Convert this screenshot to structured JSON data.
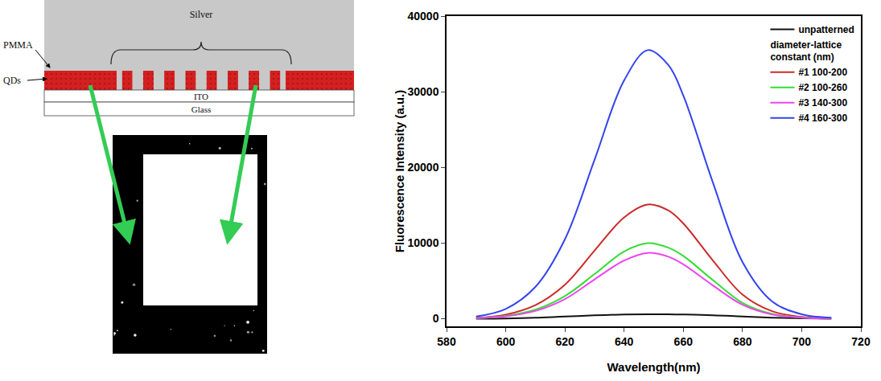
{
  "chart_data": {
    "type": "line",
    "x_label": "Wavelength(nm)",
    "y_label": "Fluorescence Intensity (a.u.)",
    "x": [
      590,
      600,
      610,
      620,
      630,
      640,
      648,
      655,
      660,
      670,
      680,
      690,
      700,
      710
    ],
    "series": [
      {
        "name": "unpatterned",
        "color": "#111111",
        "values": [
          10,
          40,
          130,
          300,
          450,
          560,
          600,
          590,
          560,
          470,
          300,
          150,
          60,
          20
        ]
      },
      {
        "name": "#1 100-200",
        "color": "#cc2a2a",
        "legend_group": "diameter-lattice constant (nm)",
        "values": [
          130,
          550,
          1800,
          4500,
          9000,
          13400,
          15100,
          14300,
          12600,
          7700,
          3200,
          1000,
          250,
          60
        ]
      },
      {
        "name": "#2 100-260",
        "color": "#33dd33",
        "legend_group": "diameter-lattice constant (nm)",
        "values": [
          90,
          370,
          1200,
          3000,
          5900,
          8900,
          10000,
          9400,
          8300,
          5100,
          2100,
          650,
          170,
          40
        ]
      },
      {
        "name": "#3 140-300",
        "color": "#ee44ee",
        "legend_group": "diameter-lattice constant (nm)",
        "values": [
          80,
          320,
          1030,
          2600,
          5200,
          7700,
          8700,
          8200,
          7200,
          4400,
          1850,
          560,
          150,
          35
        ]
      },
      {
        "name": "#4 160-300",
        "color": "#3344ee",
        "legend_group": "diameter-lattice constant (nm)",
        "values": [
          300,
          1300,
          4200,
          10500,
          21000,
          31500,
          35500,
          33500,
          29500,
          18000,
          7500,
          2300,
          600,
          150
        ]
      }
    ],
    "xlim": [
      580,
      720
    ],
    "xticks": [
      580,
      600,
      620,
      640,
      660,
      680,
      700,
      720
    ],
    "ylim": [
      -1000,
      40000
    ],
    "yticks": [
      0,
      10000,
      20000,
      30000,
      40000
    ],
    "grid": false,
    "legend": "top-right"
  },
  "diagram": {
    "labels": {
      "silver": "Silver",
      "pmma": "PMMA",
      "qds": "QDs",
      "ito": "ITO",
      "glass": "Glass"
    }
  }
}
